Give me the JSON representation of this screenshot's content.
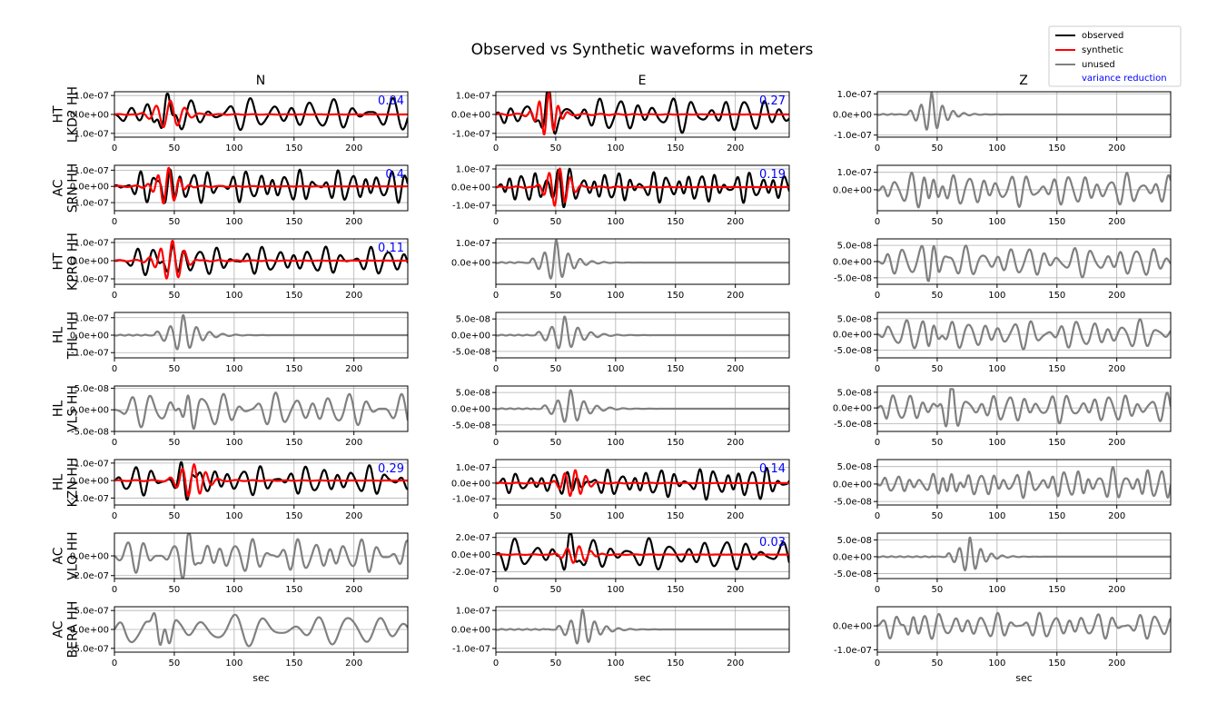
{
  "chart_data": {
    "type": "line",
    "title": "Observed vs Synthetic waveforms in meters",
    "xlabel": "sec",
    "xlim": [
      0,
      245
    ],
    "xticks": [
      0,
      50,
      100,
      150,
      200
    ],
    "grid": true,
    "columns": [
      "N",
      "E",
      "Z"
    ],
    "legend": {
      "placement": "top-right",
      "entries": [
        {
          "label": "observed",
          "color": "#000000"
        },
        {
          "label": "synthetic",
          "color": "#ff0000"
        },
        {
          "label": "unused",
          "color": "#808080"
        },
        {
          "label": "variance reduction",
          "color": "#0000ff"
        }
      ]
    },
    "colors": {
      "observed": "#000000",
      "synthetic": "#ff0000",
      "unused": "#808080",
      "variance_reduction": "#0000ff"
    },
    "rows": [
      {
        "net": "HT",
        "sta": "LKD2 HH",
        "panels": [
          {
            "used": true,
            "vr": "0.04",
            "yticks": [
              -1e-07,
              0,
              1e-07
            ],
            "tick_labels": [
              "-1.0e-07",
              "0.0e+00",
              "1.0e-07"
            ],
            "ylim": [
              -1.2e-07,
              1.2e-07
            ],
            "obs": {
              "amp": 1.1e-07,
              "period": 17,
              "pulse": 42,
              "seed": 1
            },
            "syn": {
              "amp": 7e-08,
              "center": 45,
              "period": 12
            }
          },
          {
            "used": true,
            "vr": "0.27",
            "yticks": [
              -1e-07,
              0,
              1e-07
            ],
            "tick_labels": [
              "-1.0e-07",
              "0.0e+00",
              "1.0e-07"
            ],
            "ylim": [
              -1.2e-07,
              1.2e-07
            ],
            "obs": {
              "amp": 1.2e-07,
              "period": 15,
              "pulse": 42,
              "seed": 2
            },
            "syn": {
              "amp": 1.1e-07,
              "center": 43,
              "period": 8
            }
          },
          {
            "used": false,
            "yticks": [
              -1e-07,
              0,
              1e-07
            ],
            "tick_labels": [
              "-1.0e-07",
              "0.0e+00",
              "1.0e-07"
            ],
            "ylim": [
              -1.1e-07,
              1.1e-07
            ],
            "obs": {
              "amp": 1.1e-07,
              "center": 45,
              "period": 9,
              "decay": true
            }
          }
        ]
      },
      {
        "net": "AC",
        "sta": "SRN HH",
        "panels": [
          {
            "used": true,
            "vr": "0.4",
            "yticks": [
              -1e-07,
              0,
              1e-07
            ],
            "tick_labels": [
              "-1.0e-07",
              "0.0e+00",
              "1.0e-07"
            ],
            "ylim": [
              -1.5e-07,
              1.3e-07
            ],
            "obs": {
              "amp": 1.3e-07,
              "period": 11,
              "pulse": 45,
              "seed": 3
            },
            "syn": {
              "amp": 1.1e-07,
              "center": 44,
              "period": 9
            }
          },
          {
            "used": true,
            "vr": "0.19",
            "yticks": [
              -1e-07,
              0,
              1e-07
            ],
            "tick_labels": [
              "-1.0e-07",
              "0.0e+00",
              "1.0e-07"
            ],
            "ylim": [
              -1.3e-07,
              1.2e-07
            ],
            "obs": {
              "amp": 1.1e-07,
              "period": 10,
              "pulse": 50,
              "seed": 4
            },
            "syn": {
              "amp": 1.1e-07,
              "center": 52,
              "period": 9
            }
          },
          {
            "used": false,
            "yticks": [
              0,
              1e-07
            ],
            "tick_labels": [
              "0.0e+00",
              "1.0e-07"
            ],
            "ylim": [
              -1.2e-07,
              1.4e-07
            ],
            "obs": {
              "amp": 1.2e-07,
              "period": 12,
              "pulse": 45,
              "seed": 5
            }
          }
        ]
      },
      {
        "net": "HT",
        "sta": "KPRO HH",
        "panels": [
          {
            "used": true,
            "vr": "0.11",
            "yticks": [
              -1e-07,
              0,
              1e-07
            ],
            "tick_labels": [
              "-1.0e-07",
              "0.0e+00",
              "1.0e-07"
            ],
            "ylim": [
              -1.3e-07,
              1.2e-07
            ],
            "obs": {
              "amp": 1e-07,
              "period": 13,
              "pulse": 47,
              "seed": 6
            },
            "syn": {
              "amp": 1.1e-07,
              "center": 47,
              "period": 10
            }
          },
          {
            "used": false,
            "yticks": [
              0,
              1e-07
            ],
            "tick_labels": [
              "0.0e+00",
              "1.0e-07"
            ],
            "ylim": [
              -1.1e-07,
              1.2e-07
            ],
            "obs": {
              "amp": 1.2e-07,
              "center": 50,
              "period": 10,
              "decay": true
            }
          },
          {
            "used": false,
            "yticks": [
              -5e-08,
              0,
              5e-08
            ],
            "tick_labels": [
              "-5.0e-08",
              "0.0e+00",
              "5.0e-08"
            ],
            "ylim": [
              -7e-08,
              7e-08
            ],
            "obs": {
              "amp": 6e-08,
              "period": 13,
              "pulse": 45,
              "seed": 7
            }
          }
        ]
      },
      {
        "net": "HL",
        "sta": "THL HH",
        "panels": [
          {
            "used": false,
            "yticks": [
              -1e-07,
              0,
              1e-07
            ],
            "tick_labels": [
              "-1.0e-07",
              "0.0e+00",
              "1.0e-07"
            ],
            "ylim": [
              -1.3e-07,
              1.3e-07
            ],
            "obs": {
              "amp": 1.2e-07,
              "center": 57,
              "period": 11,
              "decay": true
            }
          },
          {
            "used": false,
            "yticks": [
              -5e-08,
              0,
              5e-08
            ],
            "tick_labels": [
              "-5.0e-08",
              "0.0e+00",
              "5.0e-08"
            ],
            "ylim": [
              -7e-08,
              7e-08
            ],
            "obs": {
              "amp": 6e-08,
              "center": 57,
              "period": 11,
              "decay": true
            }
          },
          {
            "used": false,
            "yticks": [
              -5e-08,
              0,
              5e-08
            ],
            "tick_labels": [
              "-5.0e-08",
              "0.0e+00",
              "5.0e-08"
            ],
            "ylim": [
              -7.5e-08,
              7e-08
            ],
            "obs": {
              "amp": 6e-08,
              "period": 13,
              "pulse": 45,
              "seed": 8
            }
          }
        ]
      },
      {
        "net": "HL",
        "sta": "VLS HH",
        "panels": [
          {
            "used": false,
            "yticks": [
              -5e-08,
              0,
              5e-08
            ],
            "tick_labels": [
              "-5.0e-08",
              "0.0e+00",
              "5.0e-08"
            ],
            "ylim": [
              -5e-08,
              5.5e-08
            ],
            "obs": {
              "amp": 5e-08,
              "period": 15,
              "pulse": 60,
              "seed": 9
            }
          },
          {
            "used": false,
            "yticks": [
              -5e-08,
              0,
              5e-08
            ],
            "tick_labels": [
              "-5.0e-08",
              "0.0e+00",
              "5.0e-08"
            ],
            "ylim": [
              -7e-08,
              7e-08
            ],
            "obs": {
              "amp": 6e-08,
              "center": 62,
              "period": 11,
              "decay": true
            }
          },
          {
            "used": false,
            "yticks": [
              -5e-08,
              0,
              5e-08
            ],
            "tick_labels": [
              "-5.0e-08",
              "0.0e+00",
              "5.0e-08"
            ],
            "ylim": [
              -7.5e-08,
              7e-08
            ],
            "obs": {
              "amp": 6e-08,
              "period": 12,
              "pulse": 60,
              "seed": 10
            }
          }
        ]
      },
      {
        "net": "HL",
        "sta": "KZN HH",
        "panels": [
          {
            "used": true,
            "vr": "0.29",
            "yticks": [
              -1e-07,
              0,
              1e-07
            ],
            "tick_labels": [
              "-1.0e-07",
              "0.0e+00",
              "1.0e-07"
            ],
            "ylim": [
              -1.4e-07,
              1.2e-07
            ],
            "obs": {
              "amp": 1.1e-07,
              "period": 13,
              "pulse": 62,
              "seed": 11
            },
            "syn": {
              "amp": 1e-07,
              "center": 65,
              "period": 10
            }
          },
          {
            "used": true,
            "vr": "0.14",
            "yticks": [
              -1e-07,
              0,
              1e-07
            ],
            "tick_labels": [
              "-1.0e-07",
              "0.0e+00",
              "1.0e-07"
            ],
            "ylim": [
              -1.4e-07,
              1.5e-07
            ],
            "obs": {
              "amp": 1.4e-07,
              "period": 11,
              "pulse": 65,
              "seed": 12,
              "growth": true
            },
            "syn": {
              "amp": 9e-08,
              "center": 65,
              "period": 9
            }
          },
          {
            "used": false,
            "yticks": [
              -5e-08,
              0,
              5e-08
            ],
            "tick_labels": [
              "-5.0e-08",
              "0.0e+00",
              "5.0e-08"
            ],
            "ylim": [
              -6e-08,
              7e-08
            ],
            "obs": {
              "amp": 6e-08,
              "period": 10,
              "pulse": 60,
              "seed": 13,
              "growth": true
            }
          }
        ]
      },
      {
        "net": "AC",
        "sta": "VLO HH",
        "panels": [
          {
            "used": false,
            "yticks": [
              -2e-07,
              0
            ],
            "tick_labels": [
              "-2.0e-07",
              "0.0e+00"
            ],
            "ylim": [
              -2.3e-07,
              2.3e-07
            ],
            "obs": {
              "amp": 2.2e-07,
              "period": 13,
              "pulse": 60,
              "seed": 14
            }
          },
          {
            "used": true,
            "vr": "0.03",
            "yticks": [
              -2e-07,
              0,
              2e-07
            ],
            "tick_labels": [
              "-2.0e-07",
              "0.0e+00",
              "2.0e-07"
            ],
            "ylim": [
              -2.8e-07,
              2.5e-07
            ],
            "obs": {
              "amp": 2.4e-07,
              "period": 16,
              "pulse": 60,
              "seed": 15
            },
            "syn": {
              "amp": 1e-07,
              "center": 68,
              "period": 10
            }
          },
          {
            "used": false,
            "yticks": [
              -5e-08,
              0,
              5e-08
            ],
            "tick_labels": [
              "-5.0e-08",
              "0.0e+00",
              "5.0e-08"
            ],
            "ylim": [
              -6.5e-08,
              7e-08
            ],
            "obs": {
              "amp": 6e-08,
              "center": 77,
              "period": 9,
              "decay": true
            }
          }
        ]
      },
      {
        "net": "AC",
        "sta": "BERA HH",
        "panels": [
          {
            "used": false,
            "yticks": [
              -5e-07,
              0,
              5e-07
            ],
            "tick_labels": [
              "-5.0e-07",
              "0.0e+00",
              "5.0e-07"
            ],
            "ylim": [
              -6e-07,
              6e-07
            ],
            "obs": {
              "amp": 5.5e-07,
              "period": 24,
              "pulse": 40,
              "seed": 16
            }
          },
          {
            "used": false,
            "yticks": [
              -1e-07,
              0,
              1e-07
            ],
            "tick_labels": [
              "-1.0e-07",
              "0.0e+00",
              "1.0e-07"
            ],
            "ylim": [
              -1.2e-07,
              1.2e-07
            ],
            "obs": {
              "amp": 1.1e-07,
              "center": 72,
              "period": 10,
              "decay": true
            }
          },
          {
            "used": false,
            "yticks": [
              0,
              -1e-07
            ],
            "tick_labels": [
              "0.0e+00",
              "-1.0e-07"
            ],
            "ylim": [
              -1.1e-07,
              8e-08
            ],
            "obs": {
              "amp": 7e-08,
              "period": 12,
              "pulse": 28,
              "seed": 17
            }
          }
        ]
      }
    ]
  }
}
